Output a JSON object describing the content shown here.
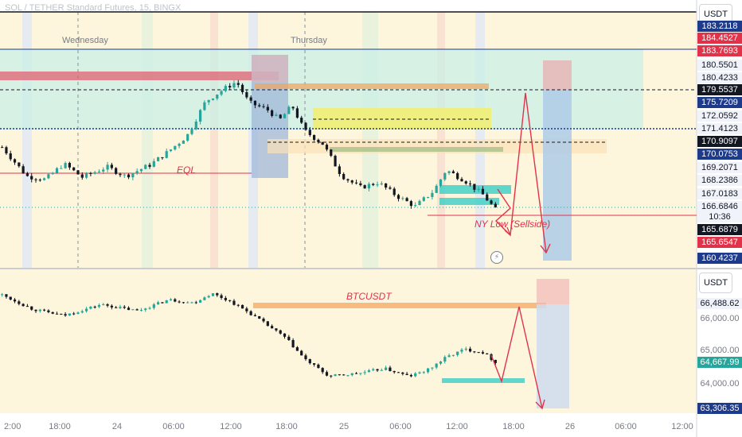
{
  "header": {
    "symbol_line": "SOL / TETHER Standard Futures, 15, BINGX"
  },
  "top_panel": {
    "currency_button": "USDT",
    "day_labels": [
      "Wednesday",
      "Thursday"
    ],
    "price_tags": [
      {
        "text": "183.2118",
        "bg": "#1e3a8a",
        "fg": "#ffffff"
      },
      {
        "text": "184.4527",
        "bg": "#e0334a",
        "fg": "#ffffff"
      },
      {
        "text": "183.7693",
        "bg": "#e0334a",
        "fg": "#ffffff"
      },
      {
        "text": "180.5501",
        "bg": "#f0f3fa",
        "fg": "#131722"
      },
      {
        "text": "180.4233",
        "bg": "#f0f3fa",
        "fg": "#131722"
      },
      {
        "text": "179.5537",
        "bg": "#131722",
        "fg": "#ffffff"
      },
      {
        "text": "175.7209",
        "bg": "#1e3a8a",
        "fg": "#ffffff"
      },
      {
        "text": "172.0592",
        "bg": "#f0f3fa",
        "fg": "#131722"
      },
      {
        "text": "171.4123",
        "bg": "#f0f3fa",
        "fg": "#131722"
      },
      {
        "text": "170.9097",
        "bg": "#131722",
        "fg": "#ffffff"
      },
      {
        "text": "170.0753",
        "bg": "#1e3a8a",
        "fg": "#ffffff"
      },
      {
        "text": "169.2071",
        "bg": "#f0f3fa",
        "fg": "#131722"
      },
      {
        "text": "168.2386",
        "bg": "#f0f3fa",
        "fg": "#131722"
      },
      {
        "text": "167.0183",
        "bg": "#f0f3fa",
        "fg": "#131722"
      },
      {
        "text": "166.6846",
        "bg": "#f0f3fa",
        "fg": "#131722"
      },
      {
        "text": "10:36",
        "bg": "#f0f3fa",
        "fg": "#131722"
      },
      {
        "text": "165.6879",
        "bg": "#131722",
        "fg": "#ffffff"
      },
      {
        "text": "165.6547",
        "bg": "#e0334a",
        "fg": "#ffffff"
      },
      {
        "text": "160.4237",
        "bg": "#1e3a8a",
        "fg": "#ffffff"
      }
    ],
    "annotations": {
      "eql": "EQL",
      "ny_low": "NY Low (Sellside)"
    }
  },
  "bottom_panel": {
    "currency_button": "USDT",
    "annotation": "BTCUSDT",
    "price_tags": [
      {
        "text": "66,488.62",
        "bg": "#f0f3fa",
        "fg": "#131722"
      },
      {
        "text": "66,000.00",
        "bg": "transparent",
        "fg": "#787b86"
      },
      {
        "text": "65,000.00",
        "bg": "transparent",
        "fg": "#787b86"
      },
      {
        "text": "64,667.99",
        "bg": "#26a69a",
        "fg": "#ffffff"
      },
      {
        "text": "64,000.00",
        "bg": "transparent",
        "fg": "#787b86"
      },
      {
        "text": "63,306.35",
        "bg": "#1e3a8a",
        "fg": "#ffffff"
      }
    ]
  },
  "x_axis": {
    "ticks": [
      "2:00",
      "18:00",
      "24",
      "06:00",
      "12:00",
      "18:00",
      "25",
      "06:00",
      "12:00",
      "18:00",
      "26",
      "06:00",
      "12:00"
    ]
  },
  "colors": {
    "bull": "#26a69a",
    "bear": "#131722",
    "sell": "#e0334a",
    "levels_blue": "#1e3a8a"
  },
  "chart_data": [
    {
      "type": "candlestick",
      "title": "SOL / TETHER Standard Futures, 15, BINGX",
      "ylim": [
        160.4,
        185.0
      ],
      "x_ticks": [
        "2:00",
        "18:00",
        "24",
        "06:00",
        "12:00",
        "18:00",
        "25",
        "06:00",
        "12:00",
        "18:00",
        "26",
        "06:00",
        "12:00"
      ],
      "close_path": [
        {
          "x": 0,
          "y": 172.0
        },
        {
          "x": 0.04,
          "y": 169.2
        },
        {
          "x": 0.07,
          "y": 168.9
        },
        {
          "x": 0.1,
          "y": 170.4
        },
        {
          "x": 0.13,
          "y": 169.1
        },
        {
          "x": 0.17,
          "y": 170.1
        },
        {
          "x": 0.2,
          "y": 169.2
        },
        {
          "x": 0.24,
          "y": 170.3
        },
        {
          "x": 0.27,
          "y": 171.6
        },
        {
          "x": 0.3,
          "y": 173.1
        },
        {
          "x": 0.33,
          "y": 176.4
        },
        {
          "x": 0.36,
          "y": 177.6
        },
        {
          "x": 0.38,
          "y": 178.3
        },
        {
          "x": 0.4,
          "y": 176.3
        },
        {
          "x": 0.43,
          "y": 175.6
        },
        {
          "x": 0.45,
          "y": 174.6
        },
        {
          "x": 0.47,
          "y": 176.0
        },
        {
          "x": 0.49,
          "y": 173.6
        },
        {
          "x": 0.52,
          "y": 172.3
        },
        {
          "x": 0.55,
          "y": 169.3
        },
        {
          "x": 0.58,
          "y": 168.1
        },
        {
          "x": 0.61,
          "y": 168.6
        },
        {
          "x": 0.64,
          "y": 167.3
        },
        {
          "x": 0.67,
          "y": 166.3
        },
        {
          "x": 0.7,
          "y": 167.8
        },
        {
          "x": 0.72,
          "y": 169.8
        },
        {
          "x": 0.75,
          "y": 168.8
        },
        {
          "x": 0.78,
          "y": 167.4
        },
        {
          "x": 0.8,
          "y": 166.0
        }
      ],
      "levels": [
        183.2118,
        184.4527,
        183.7693,
        180.5501,
        180.4233,
        179.5537,
        175.7209,
        172.0592,
        171.4123,
        170.9097,
        170.0753,
        169.2071,
        168.2386,
        167.0183,
        166.6846,
        165.6879,
        165.6547,
        160.4237
      ],
      "annotations": [
        "EQL",
        "NY Low (Sellside)"
      ]
    },
    {
      "type": "candlestick",
      "title": "BTCUSDT",
      "ylim": [
        63000,
        67500
      ],
      "y_ticks": [
        66000,
        65000,
        64000
      ],
      "close_path": [
        {
          "x": 0,
          "y": 66700
        },
        {
          "x": 0.05,
          "y": 66250
        },
        {
          "x": 0.1,
          "y": 66050
        },
        {
          "x": 0.16,
          "y": 66400
        },
        {
          "x": 0.22,
          "y": 66200
        },
        {
          "x": 0.27,
          "y": 66550
        },
        {
          "x": 0.31,
          "y": 66450
        },
        {
          "x": 0.34,
          "y": 66750
        },
        {
          "x": 0.37,
          "y": 66500
        },
        {
          "x": 0.4,
          "y": 66150
        },
        {
          "x": 0.43,
          "y": 65750
        },
        {
          "x": 0.46,
          "y": 65350
        },
        {
          "x": 0.49,
          "y": 64700
        },
        {
          "x": 0.53,
          "y": 64150
        },
        {
          "x": 0.58,
          "y": 64250
        },
        {
          "x": 0.62,
          "y": 64400
        },
        {
          "x": 0.66,
          "y": 64150
        },
        {
          "x": 0.69,
          "y": 64350
        },
        {
          "x": 0.72,
          "y": 64750
        },
        {
          "x": 0.75,
          "y": 65000
        },
        {
          "x": 0.78,
          "y": 64900
        },
        {
          "x": 0.8,
          "y": 64600
        }
      ],
      "levels": [
        66488.62,
        64667.99,
        63306.35
      ],
      "annotations": [
        "BTCUSDT"
      ]
    }
  ]
}
